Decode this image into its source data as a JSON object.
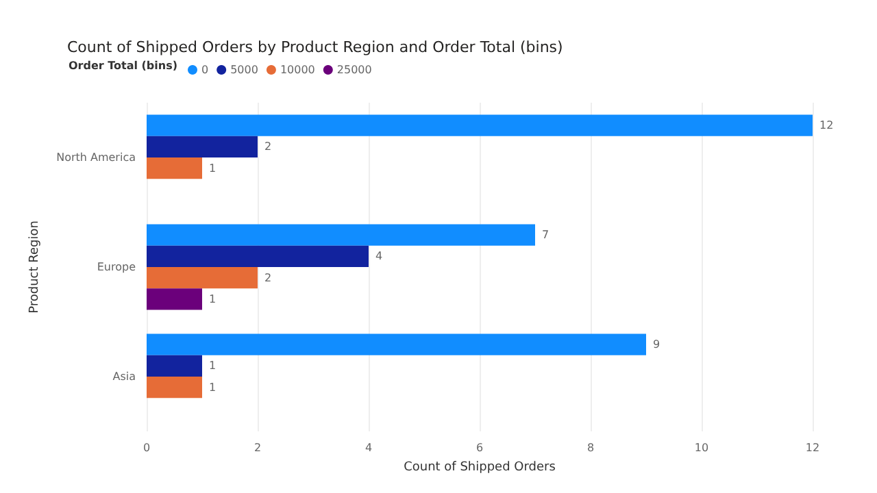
{
  "chart_data": {
    "type": "bar",
    "orientation": "horizontal",
    "title": "Count of Shipped Orders by Product Region and Order Total (bins)",
    "xlabel": "Count of Shipped Orders",
    "ylabel": "Product Region",
    "legend_title": "Order Total (bins)",
    "categories": [
      "North America",
      "Europe",
      "Asia"
    ],
    "series": [
      {
        "name": "0",
        "color": "#118dff",
        "values": [
          12,
          7,
          9
        ]
      },
      {
        "name": "5000",
        "color": "#12239e",
        "values": [
          2,
          4,
          1
        ]
      },
      {
        "name": "10000",
        "color": "#e66c37",
        "values": [
          1,
          2,
          1
        ]
      },
      {
        "name": "25000",
        "color": "#6b007b",
        "values": [
          null,
          1,
          null
        ]
      }
    ],
    "xlim": [
      0,
      12
    ],
    "xticks": [
      0,
      2,
      4,
      6,
      8,
      10,
      12
    ],
    "grid": "x",
    "legend": "top left",
    "data_labels": true
  }
}
